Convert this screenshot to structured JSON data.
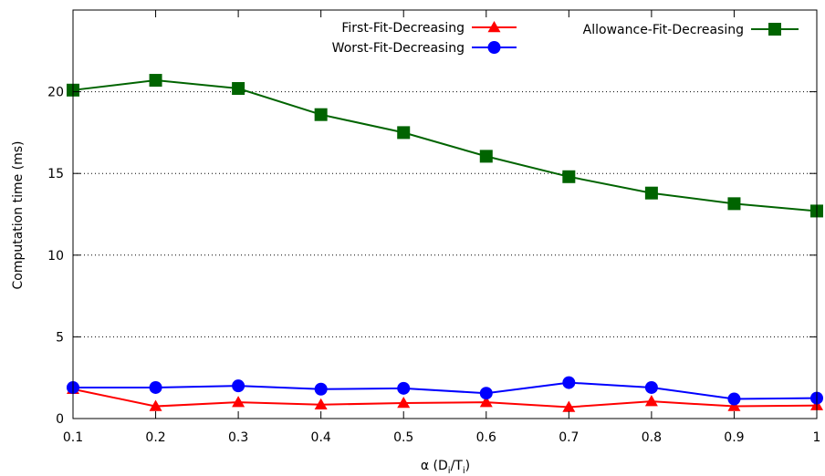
{
  "chart_data": {
    "type": "line",
    "title": "",
    "xlabel": "α (D",
    "xlabel_sub1": "i",
    "xlabel_mid": "/T",
    "xlabel_sub2": "i",
    "xlabel_end": ")",
    "ylabel": "Computation time (ms)",
    "xlim": [
      0.1,
      1.0
    ],
    "ylim": [
      0,
      25
    ],
    "x_ticks": [
      "0.1",
      "0.2",
      "0.3",
      "0.4",
      "0.5",
      "0.6",
      "0.7",
      "0.8",
      "0.9",
      "1"
    ],
    "y_ticks": [
      "0",
      "5",
      "10",
      "15",
      "20"
    ],
    "grid": "horizontal-dotted",
    "legend": "top-right",
    "x": [
      0.1,
      0.2,
      0.3,
      0.4,
      0.5,
      0.6,
      0.7,
      0.8,
      0.9,
      1.0
    ],
    "series": [
      {
        "name": "First-Fit-Decreasing",
        "marker": "triangle",
        "color": "#ff0000",
        "values": [
          1.8,
          0.75,
          1.0,
          0.85,
          0.95,
          1.0,
          0.7,
          1.05,
          0.75,
          0.8
        ]
      },
      {
        "name": "Worst-Fit-Decreasing",
        "marker": "circle",
        "color": "#0000ff",
        "values": [
          1.9,
          1.9,
          2.0,
          1.8,
          1.85,
          1.55,
          2.2,
          1.9,
          1.2,
          1.25
        ]
      },
      {
        "name": "Allowance-Fit-Decreasing",
        "marker": "square",
        "color": "#006400",
        "values": [
          20.1,
          20.7,
          20.2,
          18.6,
          17.5,
          16.05,
          14.8,
          13.8,
          13.15,
          12.7
        ]
      }
    ]
  }
}
